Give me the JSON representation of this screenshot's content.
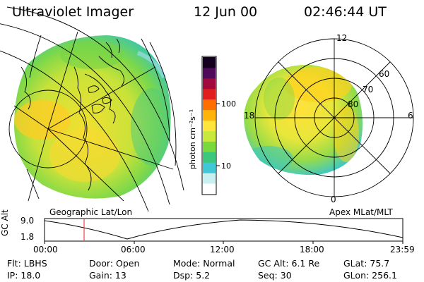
{
  "header": {
    "instrument": "Ultraviolet Imager",
    "date": "12 Jun 00",
    "time": "02:46:44 UT"
  },
  "left_panel": {
    "caption": "Geographic Lat/Lon"
  },
  "right_panel": {
    "caption": "Apex MLat/MLT",
    "mlt_labels": [
      "12",
      "18",
      "6",
      "0"
    ],
    "lat_labels": [
      "60",
      "70",
      "80"
    ]
  },
  "colorbar": {
    "label": "photon cm⁻²s⁻¹",
    "tick_100": "100",
    "tick_10": "10",
    "colors": [
      "#ffffff",
      "#c8f0f0",
      "#40c8d8",
      "#3cc87c",
      "#78d83c",
      "#c8e83c",
      "#ffe43c",
      "#ffb40c",
      "#ff6e00",
      "#e01e1e",
      "#a00a3c",
      "#500a5a",
      "#14001e"
    ]
  },
  "altitude_plot": {
    "ylabel": "GC Alt",
    "ytick_high": "9.0",
    "ytick_low": "1.8",
    "xticks": [
      "00:00",
      "06:00",
      "12:00",
      "18:00",
      "23:59"
    ],
    "marker_time": "02:46:44"
  },
  "status": {
    "filter": "Flt: LBHS",
    "ip": "IP: 18.0",
    "door": "Door: Open",
    "gain": "Gain: 13",
    "mode": "Mode: Normal",
    "dsp": "Dsp:    5.2",
    "gc_alt": "GC Alt: 6.1 Re",
    "seq": "Seq: 30",
    "glat": "GLat:   75.7",
    "glon": "GLon: 256.1"
  }
}
